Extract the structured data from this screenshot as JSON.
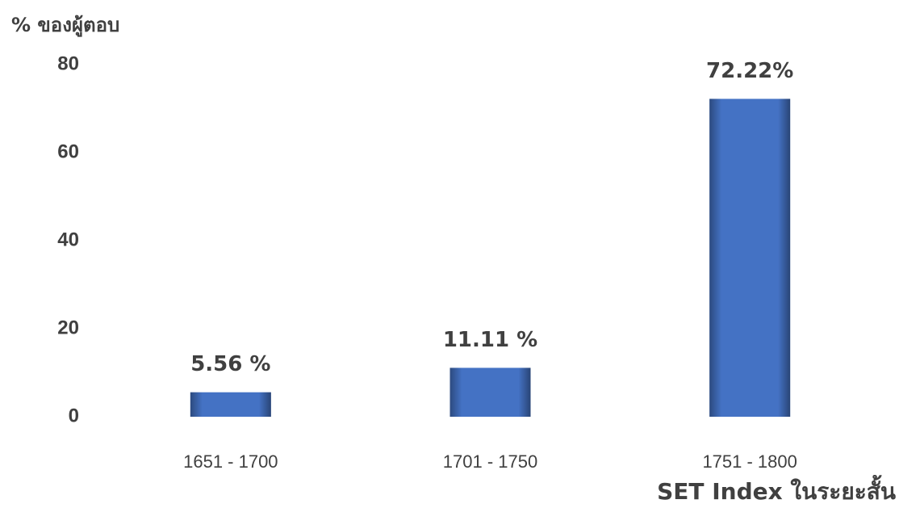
{
  "chart_data": {
    "type": "bar",
    "y_axis_label": "% ของผู้ตอบ",
    "x_axis_label": "SET Index ในระยะสั้น",
    "categories": [
      "1651 - 1700",
      "1701 - 1750",
      "1751 - 1800"
    ],
    "values": [
      5.56,
      11.11,
      72.22
    ],
    "value_labels": [
      "5.56 %",
      "11.11 %",
      "72.22%"
    ],
    "color": "#4472c4",
    "ylim": [
      0,
      80
    ],
    "yticks": [
      0,
      20,
      40,
      60,
      80
    ],
    "grid": false
  }
}
